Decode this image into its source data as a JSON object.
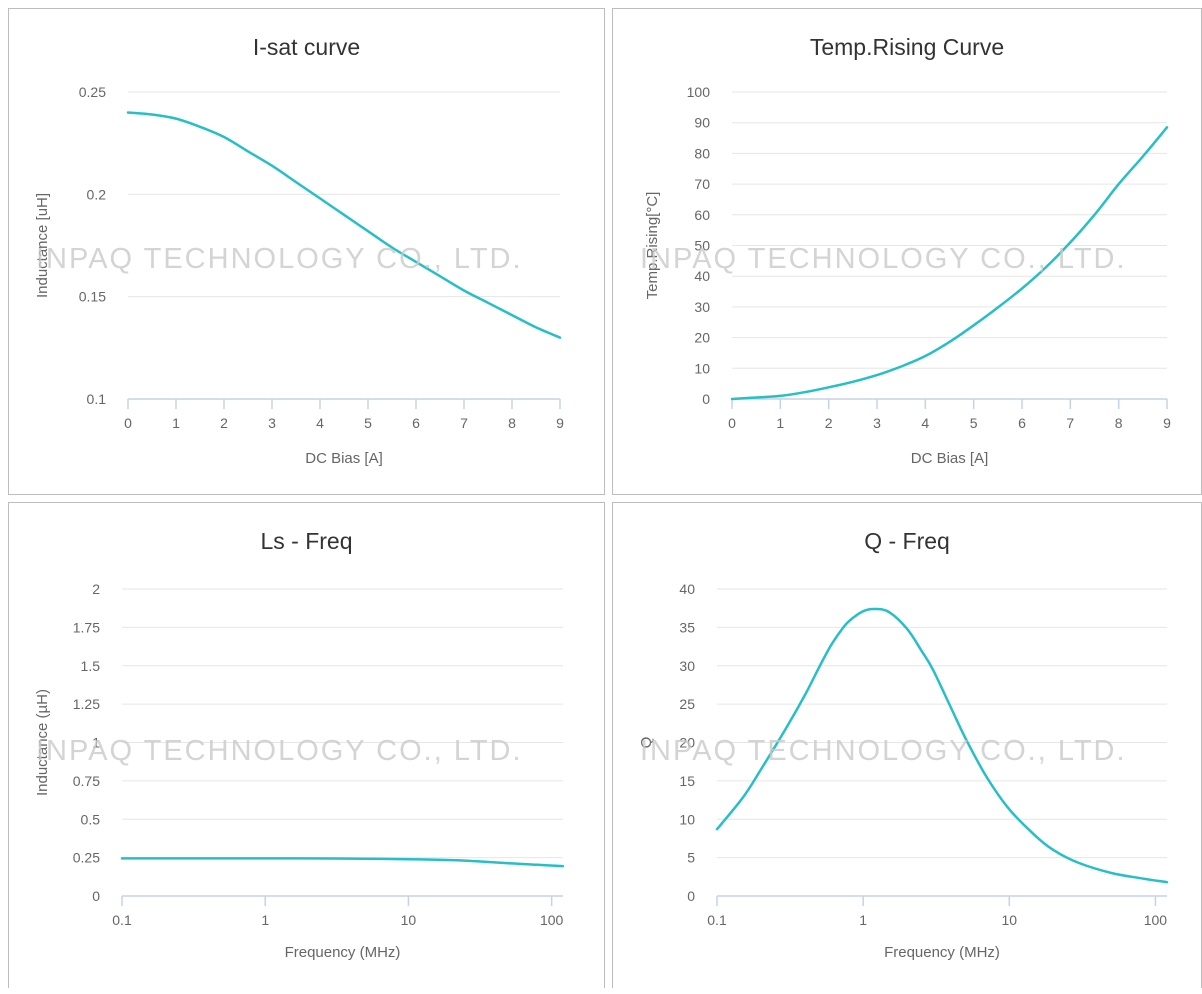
{
  "watermark": {
    "text": "INPAQ TECHNOLOGY CO., LTD.",
    "color": "#c9c9c9"
  },
  "style": {
    "line_color": "#26bfc6",
    "grid_color": "#e6e6e6",
    "axis_color": "#c6d2e6",
    "text_color": "#666666",
    "title_color": "#333333"
  },
  "chart_data": [
    {
      "type": "line",
      "title": "I-sat curve",
      "xlabel": "DC Bias [A]",
      "ylabel": "Inductance [uH]",
      "xscale": "linear",
      "xlim": [
        0,
        9
      ],
      "ylim": [
        0.1,
        0.25
      ],
      "xticks": [
        0,
        1,
        2,
        3,
        4,
        5,
        6,
        7,
        8,
        9
      ],
      "xtick_labels": [
        "0",
        "1",
        "2",
        "3",
        "4",
        "5",
        "6",
        "7",
        "8",
        "9"
      ],
      "yticks": [
        0.1,
        0.15,
        0.2,
        0.25
      ],
      "ytick_labels": [
        "0.1",
        "0.15",
        "0.2",
        "0.25"
      ],
      "grid": true,
      "x": [
        0,
        0.5,
        1,
        1.5,
        2,
        2.5,
        3,
        3.5,
        4,
        4.5,
        5,
        5.5,
        6,
        6.5,
        7,
        7.5,
        8,
        8.5,
        9
      ],
      "y": [
        0.24,
        0.239,
        0.237,
        0.233,
        0.228,
        0.221,
        0.214,
        0.206,
        0.198,
        0.19,
        0.182,
        0.174,
        0.167,
        0.16,
        0.153,
        0.147,
        0.141,
        0.135,
        0.13
      ]
    },
    {
      "type": "line",
      "title": "Temp.Rising Curve",
      "xlabel": "DC Bias [A]",
      "ylabel": "Temp.Rising[°C]",
      "xscale": "linear",
      "xlim": [
        0,
        9
      ],
      "ylim": [
        0,
        100
      ],
      "xticks": [
        0,
        1,
        2,
        3,
        4,
        5,
        6,
        7,
        8,
        9
      ],
      "xtick_labels": [
        "0",
        "1",
        "2",
        "3",
        "4",
        "5",
        "6",
        "7",
        "8",
        "9"
      ],
      "yticks": [
        0,
        10,
        20,
        30,
        40,
        50,
        60,
        70,
        80,
        90,
        100
      ],
      "ytick_labels": [
        "0",
        "10",
        "20",
        "30",
        "40",
        "50",
        "60",
        "70",
        "80",
        "90",
        "100"
      ],
      "grid": true,
      "x": [
        0,
        0.5,
        1,
        1.5,
        2,
        2.5,
        3,
        3.5,
        4,
        4.5,
        5,
        5.5,
        6,
        6.5,
        7,
        7.5,
        8,
        8.5,
        9
      ],
      "y": [
        0,
        0.5,
        1,
        2.2,
        3.8,
        5.6,
        7.8,
        10.6,
        14,
        18.6,
        24,
        29.8,
        36,
        43,
        51,
        60,
        70,
        79,
        88.5
      ]
    },
    {
      "type": "line",
      "title": "Ls - Freq",
      "xlabel": "Frequency (MHz)",
      "ylabel": "Inductance (µH)",
      "xscale": "log",
      "xlim": [
        0.1,
        120
      ],
      "ylim": [
        0,
        2
      ],
      "xticks": [
        0.1,
        1,
        10,
        100
      ],
      "xtick_labels": [
        "0.1",
        "1",
        "10",
        "100"
      ],
      "yticks": [
        0,
        0.25,
        0.5,
        0.75,
        1,
        1.25,
        1.5,
        1.75,
        2
      ],
      "ytick_labels": [
        "0",
        "0.25",
        "0.5",
        "0.75",
        "1",
        "1.25",
        "1.5",
        "1.75",
        "2"
      ],
      "grid": true,
      "x": [
        0.1,
        0.3,
        1,
        3,
        10,
        20,
        30,
        50,
        80,
        120
      ],
      "y": [
        0.245,
        0.245,
        0.245,
        0.244,
        0.24,
        0.234,
        0.226,
        0.214,
        0.203,
        0.195
      ]
    },
    {
      "type": "line",
      "title": "Q - Freq",
      "xlabel": "Frequency (MHz)",
      "ylabel": "Q",
      "xscale": "log",
      "xlim": [
        0.1,
        120
      ],
      "ylim": [
        0,
        40
      ],
      "xticks": [
        0.1,
        1,
        10,
        100
      ],
      "xtick_labels": [
        "0.1",
        "1",
        "10",
        "100"
      ],
      "yticks": [
        0,
        5,
        10,
        15,
        20,
        25,
        30,
        35,
        40
      ],
      "ytick_labels": [
        "0",
        "5",
        "10",
        "15",
        "20",
        "25",
        "30",
        "35",
        "40"
      ],
      "grid": true,
      "x": [
        0.1,
        0.15,
        0.2,
        0.3,
        0.4,
        0.5,
        0.6,
        0.7,
        0.8,
        1.0,
        1.2,
        1.5,
        2.0,
        2.5,
        3.0,
        4.0,
        5.0,
        7.0,
        10,
        15,
        20,
        30,
        50,
        80,
        120
      ],
      "y": [
        8.7,
        12.8,
        16.5,
        22.0,
        26.2,
        29.8,
        32.6,
        34.5,
        35.8,
        37.1,
        37.4,
        37.0,
        34.8,
        32.0,
        29.5,
        24.5,
        20.6,
        15.5,
        11.3,
        7.9,
        6.0,
        4.3,
        3.0,
        2.3,
        1.8
      ]
    }
  ]
}
